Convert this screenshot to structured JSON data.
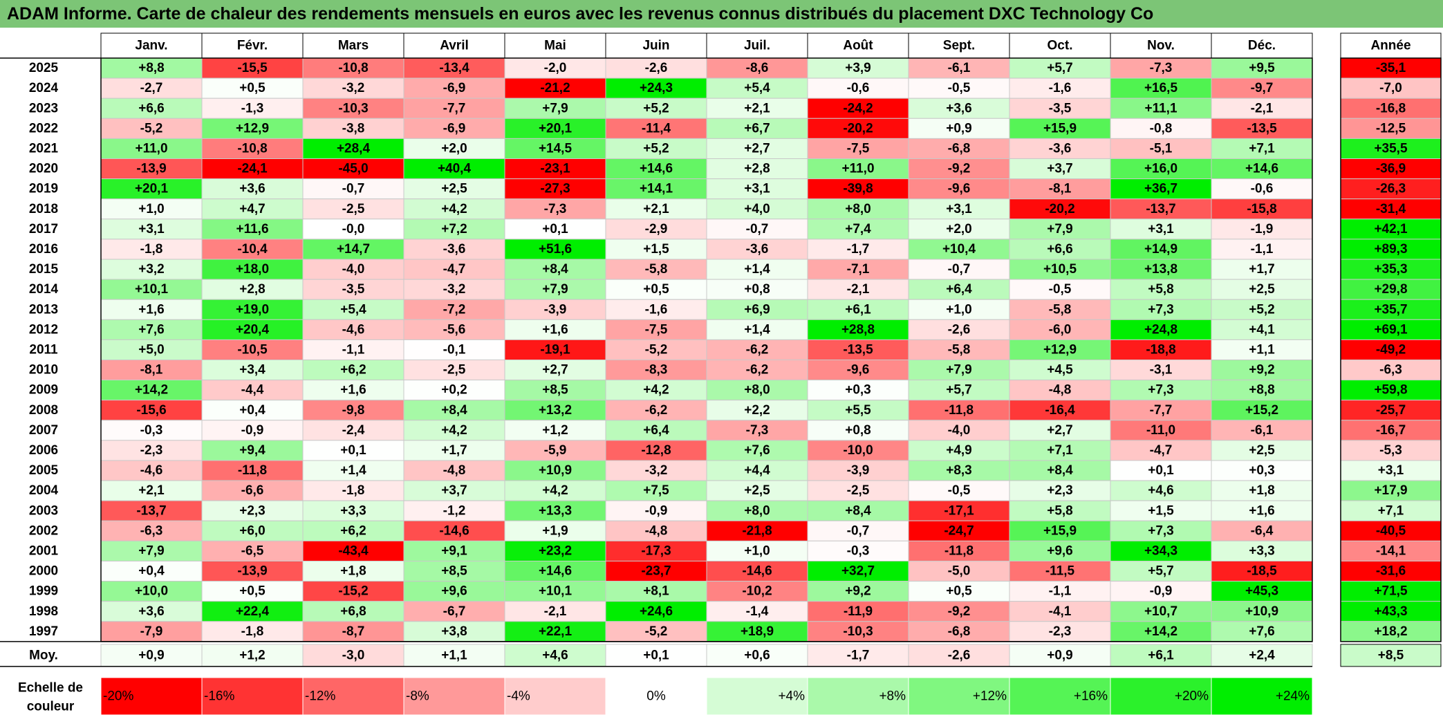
{
  "title": "ADAM Informe. Carte de chaleur des rendements mensuels en euros avec les revenus connus distribués du placement DXC Technology Co",
  "chart_data": {
    "type": "heatmap",
    "title": "ADAM Informe. Carte de chaleur des rendements mensuels en euros avec les revenus connus distribués du placement DXC Technology Co",
    "columns": [
      "Janv.",
      "Févr.",
      "Mars",
      "Avril",
      "Mai",
      "Juin",
      "Juil.",
      "Août",
      "Sept.",
      "Oct.",
      "Nov.",
      "Déc."
    ],
    "year_column_label": "Année",
    "rows": [
      {
        "year": "2025",
        "values": [
          "+8,8",
          "-15,5",
          "-10,8",
          "-13,4",
          "-2,0",
          "-2,6",
          "-8,6",
          "+3,9",
          "-6,1",
          "+5,7",
          "-7,3",
          "+9,5"
        ],
        "annual": "-35,1"
      },
      {
        "year": "2024",
        "values": [
          "-2,7",
          "+0,5",
          "-3,2",
          "-6,9",
          "-21,2",
          "+24,3",
          "+5,4",
          "-0,6",
          "-0,5",
          "-1,6",
          "+16,5",
          "-9,7"
        ],
        "annual": "-7,0"
      },
      {
        "year": "2023",
        "values": [
          "+6,6",
          "-1,3",
          "-10,3",
          "-7,7",
          "+7,9",
          "+5,2",
          "+2,1",
          "-24,2",
          "+3,6",
          "-3,5",
          "+11,1",
          "-2,1"
        ],
        "annual": "-16,8"
      },
      {
        "year": "2022",
        "values": [
          "-5,2",
          "+12,9",
          "-3,8",
          "-6,9",
          "+20,1",
          "-11,4",
          "+6,7",
          "-20,2",
          "+0,9",
          "+15,9",
          "-0,8",
          "-13,5"
        ],
        "annual": "-12,5"
      },
      {
        "year": "2021",
        "values": [
          "+11,0",
          "-10,8",
          "+28,4",
          "+2,0",
          "+14,5",
          "+5,2",
          "+2,7",
          "-7,5",
          "-6,8",
          "-3,6",
          "-5,1",
          "+7,1"
        ],
        "annual": "+35,5"
      },
      {
        "year": "2020",
        "values": [
          "-13,9",
          "-24,1",
          "-45,0",
          "+40,4",
          "-23,1",
          "+14,6",
          "+2,8",
          "+11,0",
          "-9,2",
          "+3,7",
          "+16,0",
          "+14,6"
        ],
        "annual": "-36,9"
      },
      {
        "year": "2019",
        "values": [
          "+20,1",
          "+3,6",
          "-0,7",
          "+2,5",
          "-27,3",
          "+14,1",
          "+3,1",
          "-39,8",
          "-9,6",
          "-8,1",
          "+36,7",
          "-0,6"
        ],
        "annual": "-26,3"
      },
      {
        "year": "2018",
        "values": [
          "+1,0",
          "+4,7",
          "-2,5",
          "+4,2",
          "-7,3",
          "+2,1",
          "+4,0",
          "+8,0",
          "+3,1",
          "-20,2",
          "-13,7",
          "-15,8"
        ],
        "annual": "-31,4"
      },
      {
        "year": "2017",
        "values": [
          "+3,1",
          "+11,6",
          "-0,0",
          "+7,2",
          "+0,1",
          "-2,9",
          "-0,7",
          "+7,4",
          "+2,0",
          "+7,9",
          "+3,1",
          "-1,9"
        ],
        "annual": "+42,1"
      },
      {
        "year": "2016",
        "values": [
          "-1,8",
          "-10,4",
          "+14,7",
          "-3,6",
          "+51,6",
          "+1,5",
          "-3,6",
          "-1,7",
          "+10,4",
          "+6,6",
          "+14,9",
          "-1,1"
        ],
        "annual": "+89,3"
      },
      {
        "year": "2015",
        "values": [
          "+3,2",
          "+18,0",
          "-4,0",
          "-4,7",
          "+8,4",
          "-5,8",
          "+1,4",
          "-7,1",
          "-0,7",
          "+10,5",
          "+13,8",
          "+1,7"
        ],
        "annual": "+35,3"
      },
      {
        "year": "2014",
        "values": [
          "+10,1",
          "+2,8",
          "-3,5",
          "-3,2",
          "+7,9",
          "+0,5",
          "+0,8",
          "-2,1",
          "+6,4",
          "-0,5",
          "+5,8",
          "+2,5"
        ],
        "annual": "+29,8"
      },
      {
        "year": "2013",
        "values": [
          "+1,6",
          "+19,0",
          "+5,4",
          "-7,2",
          "-3,9",
          "-1,6",
          "+6,9",
          "+6,1",
          "+1,0",
          "-5,8",
          "+7,3",
          "+5,2"
        ],
        "annual": "+35,7"
      },
      {
        "year": "2012",
        "values": [
          "+7,6",
          "+20,4",
          "-4,6",
          "-5,6",
          "+1,6",
          "-7,5",
          "+1,4",
          "+28,8",
          "-2,6",
          "-6,0",
          "+24,8",
          "+4,1"
        ],
        "annual": "+69,1"
      },
      {
        "year": "2011",
        "values": [
          "+5,0",
          "-10,5",
          "-1,1",
          "-0,1",
          "-19,1",
          "-5,2",
          "-6,2",
          "-13,5",
          "-5,8",
          "+12,9",
          "-18,8",
          "+1,1"
        ],
        "annual": "-49,2"
      },
      {
        "year": "2010",
        "values": [
          "-8,1",
          "+3,4",
          "+6,2",
          "-2,5",
          "+2,7",
          "-8,3",
          "-6,2",
          "-9,6",
          "+7,9",
          "+4,5",
          "-3,1",
          "+9,2"
        ],
        "annual": "-6,3"
      },
      {
        "year": "2009",
        "values": [
          "+14,2",
          "-4,4",
          "+1,6",
          "+0,2",
          "+8,5",
          "+4,2",
          "+8,0",
          "+0,3",
          "+5,7",
          "-4,8",
          "+7,3",
          "+8,8"
        ],
        "annual": "+59,8"
      },
      {
        "year": "2008",
        "values": [
          "-15,6",
          "+0,4",
          "-9,8",
          "+8,4",
          "+13,2",
          "-6,2",
          "+2,2",
          "+5,5",
          "-11,8",
          "-16,4",
          "-7,7",
          "+15,2"
        ],
        "annual": "-25,7"
      },
      {
        "year": "2007",
        "values": [
          "-0,3",
          "-0,9",
          "-2,4",
          "+4,2",
          "+1,2",
          "+6,4",
          "-7,3",
          "+0,8",
          "-4,0",
          "+2,7",
          "-11,0",
          "-6,1"
        ],
        "annual": "-16,7"
      },
      {
        "year": "2006",
        "values": [
          "-2,3",
          "+9,4",
          "+0,1",
          "+1,7",
          "-5,9",
          "-12,8",
          "+7,6",
          "-10,0",
          "+4,9",
          "+7,1",
          "-4,7",
          "+2,5"
        ],
        "annual": "-5,3"
      },
      {
        "year": "2005",
        "values": [
          "-4,6",
          "-11,8",
          "+1,4",
          "-4,8",
          "+10,9",
          "-3,2",
          "+4,4",
          "-3,9",
          "+8,3",
          "+8,4",
          "+0,1",
          "+0,3"
        ],
        "annual": "+3,1"
      },
      {
        "year": "2004",
        "values": [
          "+2,1",
          "-6,6",
          "-1,8",
          "+3,7",
          "+4,2",
          "+7,5",
          "+2,5",
          "-2,5",
          "-0,5",
          "+2,3",
          "+4,6",
          "+1,8"
        ],
        "annual": "+17,9"
      },
      {
        "year": "2003",
        "values": [
          "-13,7",
          "+2,3",
          "+3,3",
          "-1,2",
          "+13,3",
          "-0,9",
          "+8,0",
          "+8,4",
          "-17,1",
          "+5,8",
          "+1,5",
          "+1,6"
        ],
        "annual": "+7,1"
      },
      {
        "year": "2002",
        "values": [
          "-6,3",
          "+6,0",
          "+6,2",
          "-14,6",
          "+1,9",
          "-4,8",
          "-21,8",
          "-0,7",
          "-24,7",
          "+15,9",
          "+7,3",
          "-6,4"
        ],
        "annual": "-40,5"
      },
      {
        "year": "2001",
        "values": [
          "+7,9",
          "-6,5",
          "-43,4",
          "+9,1",
          "+23,2",
          "-17,3",
          "+1,0",
          "-0,3",
          "-11,8",
          "+9,6",
          "+34,3",
          "+3,3"
        ],
        "annual": "-14,1"
      },
      {
        "year": "2000",
        "values": [
          "+0,4",
          "-13,9",
          "+1,8",
          "+8,5",
          "+14,6",
          "-23,7",
          "-14,6",
          "+32,7",
          "-5,0",
          "-11,5",
          "+5,7",
          "-18,5"
        ],
        "annual": "-31,6"
      },
      {
        "year": "1999",
        "values": [
          "+10,0",
          "+0,5",
          "-15,2",
          "+9,6",
          "+10,1",
          "+8,1",
          "-10,2",
          "+9,2",
          "+0,5",
          "-1,1",
          "-0,9",
          "+45,3"
        ],
        "annual": "+71,5"
      },
      {
        "year": "1998",
        "values": [
          "+3,6",
          "+22,4",
          "+6,8",
          "-6,7",
          "-2,1",
          "+24,6",
          "-1,4",
          "-11,9",
          "-9,2",
          "-4,1",
          "+10,7",
          "+10,9"
        ],
        "annual": "+43,3"
      },
      {
        "year": "1997",
        "values": [
          "-7,9",
          "-1,8",
          "-8,7",
          "+3,8",
          "+22,1",
          "-5,2",
          "+18,9",
          "-10,3",
          "-6,8",
          "-2,3",
          "+14,2",
          "+7,6"
        ],
        "annual": "+18,2"
      }
    ],
    "average": {
      "label": "Moy.",
      "values": [
        "+0,9",
        "+1,2",
        "-3,0",
        "+1,1",
        "+4,6",
        "+0,1",
        "+0,6",
        "-1,7",
        "-2,6",
        "+0,9",
        "+6,1",
        "+2,4"
      ],
      "annual": "+8,5"
    },
    "scale": {
      "label_line1": "Echelle de",
      "label_line2": "couleur",
      "stops": [
        "-20%",
        "-16%",
        "-12%",
        "-8%",
        "-4%",
        "0%",
        "+4%",
        "+8%",
        "+12%",
        "+16%",
        "+20%",
        "+24%"
      ],
      "stop_values": [
        -20,
        -16,
        -12,
        -8,
        -4,
        0,
        4,
        8,
        12,
        16,
        20,
        24
      ]
    },
    "colors": {
      "negative_max": "#ff0000",
      "neutral": "#ffffff",
      "positive_max": "#00ee00",
      "title_bar": "#7cc576",
      "grid": "#c8c8c8"
    }
  }
}
